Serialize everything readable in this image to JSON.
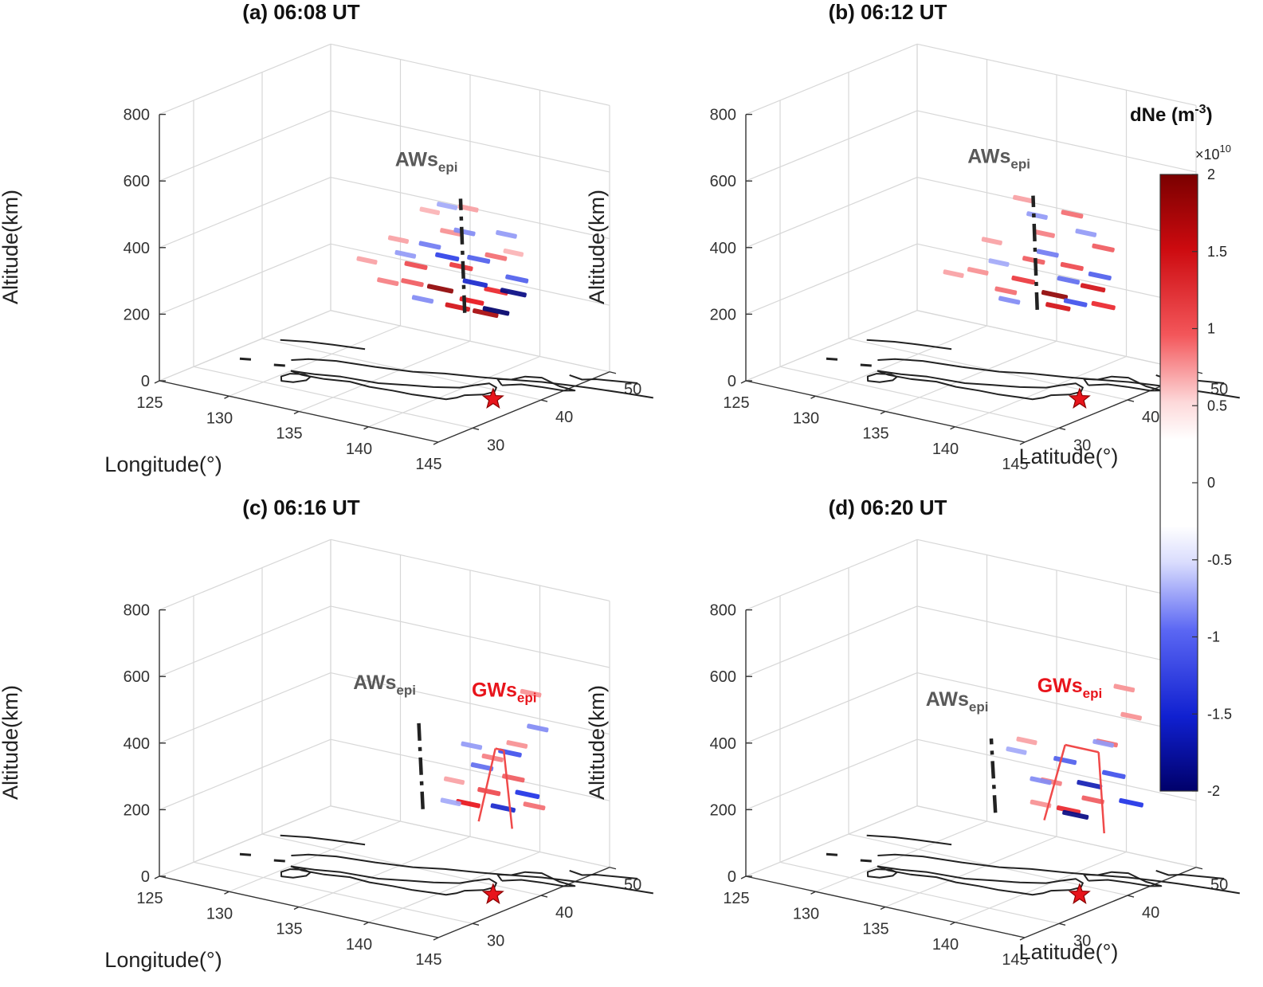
{
  "figure": {
    "colorbar": {
      "title": "dNe (m",
      "title_exp": "-3",
      "title_close": ")",
      "scale_label": "×10",
      "scale_exp": "10",
      "range": [
        -2,
        2
      ],
      "ticks": [
        "2",
        "1.5",
        "1",
        "0.5",
        "0",
        "-0.5",
        "-1",
        "-1.5",
        "-2"
      ],
      "colors": {
        "high": "#7a0000",
        "mid_high": "#e8141b",
        "zero": "#ffffff",
        "mid_low": "#1f32e6",
        "low": "#00006a"
      }
    },
    "labels": {
      "altitude": "Altitude(km)",
      "longitude": "Longitude(°)",
      "latitude": "Latitude(°)",
      "aws": "AWs",
      "gws": "GWs",
      "sub": "epi"
    },
    "axis_ticks": {
      "altitude": [
        "0",
        "200",
        "400",
        "600",
        "800"
      ],
      "longitude": [
        "125",
        "130",
        "135",
        "140",
        "145"
      ],
      "latitude": [
        "30",
        "40",
        "50"
      ]
    }
  },
  "chart_data": [
    {
      "type": "scatter",
      "panel": "a",
      "title": "(a) 06:08 UT",
      "xlabel": "Longitude(°)",
      "ylabel": "Latitude(°)",
      "zlabel": "Altitude(km)",
      "xlim": [
        125,
        145
      ],
      "ylim": [
        25,
        50
      ],
      "zlim": [
        0,
        800
      ],
      "annotations": [
        "AWs_epi"
      ],
      "epicenter": {
        "lon": 142.4,
        "lat": 38.3,
        "marker": "red star"
      },
      "show_xlabel": true,
      "show_ylabel": false,
      "aws_line": {
        "lon": 141,
        "lat": 37,
        "alt_range": [
          250,
          590
        ]
      },
      "gws_lines": [],
      "series": [
        {
          "name": "positive dNe (x1e10 m^-3)",
          "points": [
            {
              "lon": 139.0,
              "lat": 37.5,
              "alt": 300,
              "v": 1.9
            },
            {
              "lon": 141.5,
              "lat": 37.0,
              "alt": 290,
              "v": 1.5
            },
            {
              "lon": 143.0,
              "lat": 37.5,
              "alt": 330,
              "v": 1.4
            },
            {
              "lon": 137.5,
              "lat": 37.0,
              "alt": 360,
              "v": 1.2
            },
            {
              "lon": 140.0,
              "lat": 38.0,
              "alt": 250,
              "v": 1.6
            },
            {
              "lon": 135.0,
              "lat": 38.0,
              "alt": 280,
              "v": 0.9
            },
            {
              "lon": 142.5,
              "lat": 38.5,
              "alt": 420,
              "v": 1.0
            },
            {
              "lon": 139.5,
              "lat": 38.0,
              "alt": 470,
              "v": 0.8
            },
            {
              "lon": 136.0,
              "lat": 37.5,
              "alt": 420,
              "v": 0.7
            },
            {
              "lon": 141.0,
              "lat": 37.5,
              "alt": 560,
              "v": 0.7
            },
            {
              "lon": 138.0,
              "lat": 38.0,
              "alt": 520,
              "v": 0.6
            },
            {
              "lon": 133.5,
              "lat": 38.0,
              "alt": 330,
              "v": 0.7
            },
            {
              "lon": 144.0,
              "lat": 38.0,
              "alt": 450,
              "v": 0.6
            },
            {
              "lon": 140.5,
              "lat": 37.5,
              "alt": 380,
              "v": 1.3
            },
            {
              "lon": 137.0,
              "lat": 37.5,
              "alt": 300,
              "v": 1.1
            },
            {
              "lon": 142.0,
              "lat": 38.0,
              "alt": 250,
              "v": 1.8
            }
          ]
        },
        {
          "name": "negative dNe (x1e10 m^-3)",
          "points": [
            {
              "lon": 143.0,
              "lat": 37.5,
              "alt": 270,
              "v": -2.0
            },
            {
              "lon": 144.0,
              "lat": 38.0,
              "alt": 330,
              "v": -1.9
            },
            {
              "lon": 141.5,
              "lat": 37.5,
              "alt": 340,
              "v": -1.6
            },
            {
              "lon": 139.5,
              "lat": 37.5,
              "alt": 400,
              "v": -1.4
            },
            {
              "lon": 142.0,
              "lat": 37.0,
              "alt": 420,
              "v": -1.2
            },
            {
              "lon": 138.5,
              "lat": 37.0,
              "alt": 430,
              "v": -1.0
            },
            {
              "lon": 140.5,
              "lat": 38.0,
              "alt": 480,
              "v": -0.9
            },
            {
              "lon": 136.5,
              "lat": 37.5,
              "alt": 380,
              "v": -0.8
            },
            {
              "lon": 143.5,
              "lat": 38.0,
              "alt": 500,
              "v": -0.8
            },
            {
              "lon": 137.5,
              "lat": 38.0,
              "alt": 250,
              "v": -0.9
            },
            {
              "lon": 139.0,
              "lat": 38.5,
              "alt": 540,
              "v": -0.7
            },
            {
              "lon": 144.5,
              "lat": 37.5,
              "alt": 380,
              "v": -1.2
            }
          ]
        }
      ]
    },
    {
      "type": "scatter",
      "panel": "b",
      "title": "(b) 06:12 UT",
      "xlabel": "Longitude(°)",
      "ylabel": "Latitude(°)",
      "zlabel": "Altitude(km)",
      "xlim": [
        125,
        145
      ],
      "ylim": [
        25,
        50
      ],
      "zlim": [
        0,
        800
      ],
      "annotations": [
        "AWs_epi"
      ],
      "epicenter": {
        "lon": 142.4,
        "lat": 38.3,
        "marker": "red star"
      },
      "show_xlabel": false,
      "show_ylabel": true,
      "aws_line": {
        "lon": 140,
        "lat": 37,
        "alt_range": [
          250,
          590
        ]
      },
      "gws_lines": [],
      "series": [
        {
          "name": "positive dNe (x1e10 m^-3)",
          "points": [
            {
              "lon": 141.0,
              "lat": 37.5,
              "alt": 300,
              "v": 1.9
            },
            {
              "lon": 143.5,
              "lat": 38.0,
              "alt": 340,
              "v": 1.6
            },
            {
              "lon": 139.0,
              "lat": 37.0,
              "alt": 330,
              "v": 1.3
            },
            {
              "lon": 142.0,
              "lat": 38.0,
              "alt": 390,
              "v": 1.2
            },
            {
              "lon": 137.5,
              "lat": 37.5,
              "alt": 280,
              "v": 1.0
            },
            {
              "lon": 144.0,
              "lat": 38.5,
              "alt": 460,
              "v": 1.1
            },
            {
              "lon": 140.0,
              "lat": 38.0,
              "alt": 470,
              "v": 0.9
            },
            {
              "lon": 135.5,
              "lat": 37.5,
              "alt": 320,
              "v": 0.8
            },
            {
              "lon": 138.5,
              "lat": 38.0,
              "alt": 560,
              "v": 0.7
            },
            {
              "lon": 142.5,
              "lat": 37.0,
              "alt": 560,
              "v": 1.0
            },
            {
              "lon": 141.0,
              "lat": 38.0,
              "alt": 260,
              "v": 1.6
            },
            {
              "lon": 136.5,
              "lat": 37.5,
              "alt": 420,
              "v": 0.7
            },
            {
              "lon": 144.5,
              "lat": 37.5,
              "alt": 300,
              "v": 1.4
            },
            {
              "lon": 139.5,
              "lat": 37.5,
              "alt": 390,
              "v": 1.1
            },
            {
              "lon": 133.5,
              "lat": 38.0,
              "alt": 290,
              "v": 0.7
            }
          ]
        },
        {
          "name": "negative dNe (x1e10 m^-3)",
          "points": [
            {
              "lon": 142.5,
              "lat": 37.5,
              "alt": 290,
              "v": -1.3
            },
            {
              "lon": 144.0,
              "lat": 38.0,
              "alt": 380,
              "v": -1.2
            },
            {
              "lon": 140.5,
              "lat": 37.5,
              "alt": 420,
              "v": -1.0
            },
            {
              "lon": 138.0,
              "lat": 37.0,
              "alt": 260,
              "v": -0.9
            },
            {
              "lon": 143.0,
              "lat": 38.0,
              "alt": 500,
              "v": -0.8
            },
            {
              "lon": 139.5,
              "lat": 38.0,
              "alt": 520,
              "v": -0.8
            },
            {
              "lon": 137.0,
              "lat": 37.5,
              "alt": 360,
              "v": -0.7
            },
            {
              "lon": 141.5,
              "lat": 38.5,
              "alt": 340,
              "v": -1.1
            }
          ]
        }
      ]
    },
    {
      "type": "scatter",
      "panel": "c",
      "title": "(c) 06:16 UT",
      "xlabel": "Longitude(°)",
      "ylabel": "Latitude(°)",
      "zlabel": "Altitude(km)",
      "xlim": [
        125,
        145
      ],
      "ylim": [
        25,
        50
      ],
      "zlim": [
        0,
        800
      ],
      "annotations": [
        "AWs_epi",
        "GWs_epi"
      ],
      "epicenter": {
        "lon": 142.4,
        "lat": 38.3,
        "marker": "red star"
      },
      "show_xlabel": true,
      "show_ylabel": false,
      "aws_line": {
        "lon": 138,
        "lat": 37,
        "alt_range": [
          220,
          480
        ]
      },
      "gws_lines": [
        {
          "lon": [
            142.0,
            143.2
          ],
          "lat": 37,
          "alt_range": [
            220,
            450
          ]
        },
        {
          "lon": [
            144.4,
            143.8
          ],
          "lat": 37,
          "alt_range": [
            220,
            450
          ]
        }
      ],
      "series": [
        {
          "name": "positive dNe (x1e10 m^-3)",
          "points": [
            {
              "lon": 141.0,
              "lat": 37.5,
              "alt": 260,
              "v": 1.5
            },
            {
              "lon": 142.5,
              "lat": 37.5,
              "alt": 310,
              "v": 1.2
            },
            {
              "lon": 144.0,
              "lat": 38.0,
              "alt": 360,
              "v": 1.1
            },
            {
              "lon": 143.0,
              "lat": 37.0,
              "alt": 420,
              "v": 0.9
            },
            {
              "lon": 145.0,
              "lat": 38.5,
              "alt": 620,
              "v": 0.8
            },
            {
              "lon": 144.5,
              "lat": 37.5,
              "alt": 470,
              "v": 0.8
            },
            {
              "lon": 140.0,
              "lat": 37.5,
              "alt": 320,
              "v": 0.7
            },
            {
              "lon": 145.5,
              "lat": 38.0,
              "alt": 290,
              "v": 1.0
            }
          ]
        },
        {
          "name": "negative dNe (x1e10 m^-3)",
          "points": [
            {
              "lon": 143.5,
              "lat": 37.5,
              "alt": 270,
              "v": -1.6
            },
            {
              "lon": 145.0,
              "lat": 38.0,
              "alt": 320,
              "v": -1.5
            },
            {
              "lon": 142.0,
              "lat": 37.5,
              "alt": 380,
              "v": -1.1
            },
            {
              "lon": 144.0,
              "lat": 37.5,
              "alt": 440,
              "v": -1.3
            },
            {
              "lon": 141.0,
              "lat": 38.0,
              "alt": 430,
              "v": -0.8
            },
            {
              "lon": 145.5,
              "lat": 38.5,
              "alt": 520,
              "v": -0.9
            },
            {
              "lon": 140.0,
              "lat": 37.0,
              "alt": 260,
              "v": -0.7
            }
          ]
        }
      ]
    },
    {
      "type": "scatter",
      "panel": "d",
      "title": "(d) 06:20 UT",
      "xlabel": "Longitude(°)",
      "ylabel": "Latitude(°)",
      "zlabel": "Altitude(km)",
      "xlim": [
        125,
        145
      ],
      "ylim": [
        25,
        50
      ],
      "zlim": [
        0,
        800
      ],
      "annotations": [
        "AWs_epi",
        "GWs_epi"
      ],
      "epicenter": {
        "lon": 142.4,
        "lat": 38.3,
        "marker": "red star"
      },
      "show_xlabel": false,
      "show_ylabel": true,
      "aws_line": {
        "lon": 137,
        "lat": 37,
        "alt_range": [
          200,
          420
        ]
      },
      "gws_lines": [
        {
          "lon": [
            140.5,
            142.0
          ],
          "lat": 37,
          "alt_range": [
            210,
            450
          ]
        },
        {
          "lon": [
            144.8,
            144.4
          ],
          "lat": 37,
          "alt_range": [
            210,
            450
          ]
        }
      ],
      "series": [
        {
          "name": "positive dNe (x1e10 m^-3)",
          "points": [
            {
              "lon": 142.0,
              "lat": 37.5,
              "alt": 250,
              "v": 1.4
            },
            {
              "lon": 143.5,
              "lat": 38.0,
              "alt": 290,
              "v": 1.1
            },
            {
              "lon": 141.0,
              "lat": 37.0,
              "alt": 330,
              "v": 0.9
            },
            {
              "lon": 144.5,
              "lat": 38.0,
              "alt": 470,
              "v": 1.0
            },
            {
              "lon": 145.5,
              "lat": 38.5,
              "alt": 640,
              "v": 0.8
            },
            {
              "lon": 139.0,
              "lat": 37.5,
              "alt": 430,
              "v": 0.7
            },
            {
              "lon": 146.0,
              "lat": 38.5,
              "alt": 560,
              "v": 0.8
            },
            {
              "lon": 140.0,
              "lat": 37.5,
              "alt": 250,
              "v": 0.8
            }
          ]
        },
        {
          "name": "negative dNe (x1e10 m^-3)",
          "points": [
            {
              "lon": 142.5,
              "lat": 37.5,
              "alt": 240,
              "v": -1.9
            },
            {
              "lon": 143.5,
              "lat": 37.5,
              "alt": 340,
              "v": -1.7
            },
            {
              "lon": 141.5,
              "lat": 38.0,
              "alt": 390,
              "v": -1.2
            },
            {
              "lon": 145.0,
              "lat": 38.0,
              "alt": 380,
              "v": -1.3
            },
            {
              "lon": 146.0,
              "lat": 38.5,
              "alt": 300,
              "v": -1.5
            },
            {
              "lon": 140.0,
              "lat": 37.5,
              "alt": 320,
              "v": -0.9
            },
            {
              "lon": 144.0,
              "lat": 38.5,
              "alt": 460,
              "v": -0.8
            },
            {
              "lon": 138.5,
              "lat": 37.0,
              "alt": 400,
              "v": -0.7
            }
          ]
        }
      ]
    }
  ]
}
